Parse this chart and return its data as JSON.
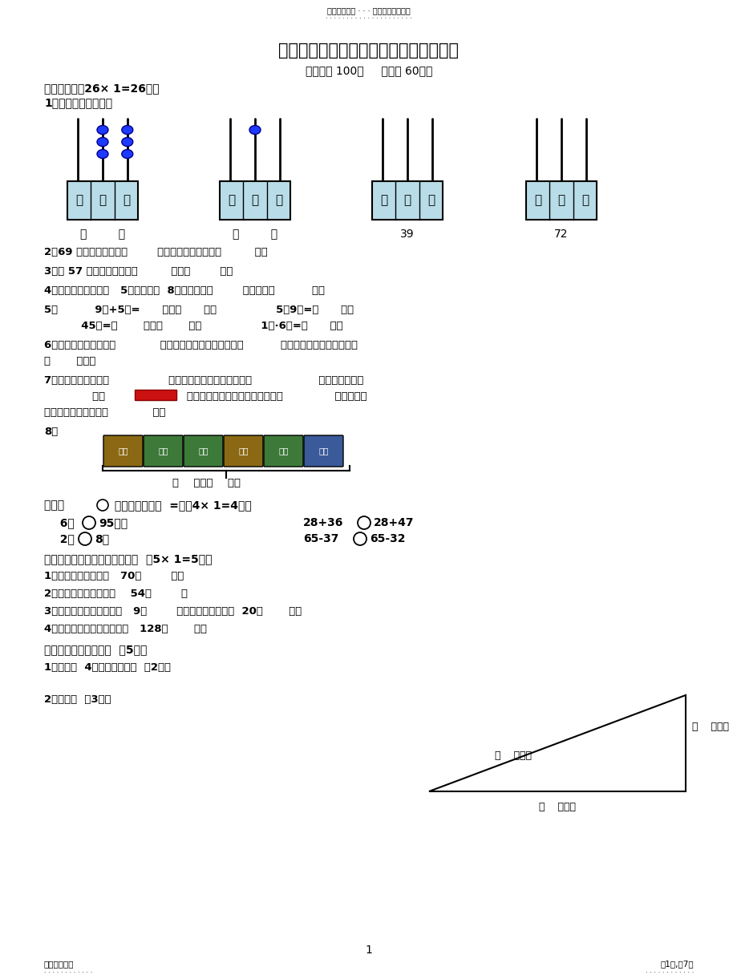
{
  "title": "六年制小学数学一年级下册质量检测试题",
  "header_text": "名师资料总结 · · · 精品资料欢迎下载",
  "header_dots": "· · · · · · · · · · · · · · · · · · · · ·",
  "subtitle": "（满分： 100分     时间： 60分）",
  "section1": "一、填空。（26× 1=26分）",
  "sub1": "1、填一填，画一画。",
  "q2": "2、69 前面的一个数是（        ），后面的一个数是（         ）。",
  "q3": "3、与 57 相邻的两个数是（         ）和（        ）。",
  "q4": "4、一个数，个位上是   5，十位上是  8，这个数是（        ），读作（          ）。",
  "q5a": "5、          9角+5角=      ）元（      ）角                5元9角=（      ）角",
  "q5b": "          45角=（       ）元（       ）角                1元·6角=（      ）角",
  "q6": "6、早晨上学，太阳在（            ）方；傍晚放学时，太阳在（          ）方。北极星所在的位置是",
  "q6b": "（       ）方。",
  "q7": "7、我们的红领巾是（                ）形的，数学课本的封面是（                  ）形的。我们称",
  "q7b": "             为（                      ）形。用易拉罐的底面可以画出（              ）形。用魔",
  "q7c": "方的一个面可以画出（            ）形",
  "q8": "8、",
  "q8b": "（    ）元（    ）角",
  "section2_pre": "二、在   ",
  "section2_post": " 里填上＜、＞或  =。（4× 1=4分）",
  "q_s2_r1_l1": "  6米",
  "q_s2_r1_l2": "95厘米",
  "q_s2_r1_r1": "28+36",
  "q_s2_r1_r2": "28+47",
  "q_s2_r2_l1": "  2元",
  "q_s2_r2_l2": "8角",
  "q_s2_r2_r1": "65-37",
  "q_s2_r2_r2": "65-32",
  "section3": "三、在括号里填上合适的单位。  （5× 1=5分）",
  "q_s3_1": "1、课桌的高度大约是   70（        ）。",
  "q_s3_2": "2、一个书包的价钱大约    54（        ）",
  "q_s3_3": "3、一把直尺的价钱大约是   9（        ），它的长度大约是  20（       ）。",
  "q_s3_4": "4、一座电视塔的高度大约是   128（       ）。",
  "section4": "四、画一画，量一量。  （5分）",
  "q_s4_1": "1、画一条  4厘米长的线段。  （2分）",
  "q_s4_2": "2、量一量  （3分）",
  "q_s4_2_right": "（    ）厘米",
  "q_s4_2_hyp": "（    ）厘米",
  "q_s4_2_bottom": "（    ）厘米",
  "page_num": "1",
  "footer_left": "名师精心整理",
  "footer_right": "第1页,共7页",
  "footer_dots": "· · · · · · · · · · · ·",
  "bead_color": "#1E3AFF",
  "bead_edge": "#00008B",
  "abacus_box_color": "#B8DDE8",
  "money_colors": [
    "#8B6914",
    "#3D7A3A",
    "#3D7A3A",
    "#8B6914",
    "#3D7A3A",
    "#3A5A9A"
  ],
  "money_labels": [
    "贰元",
    "伍角",
    "伍角",
    "贰元",
    "伍角",
    "贰角"
  ]
}
